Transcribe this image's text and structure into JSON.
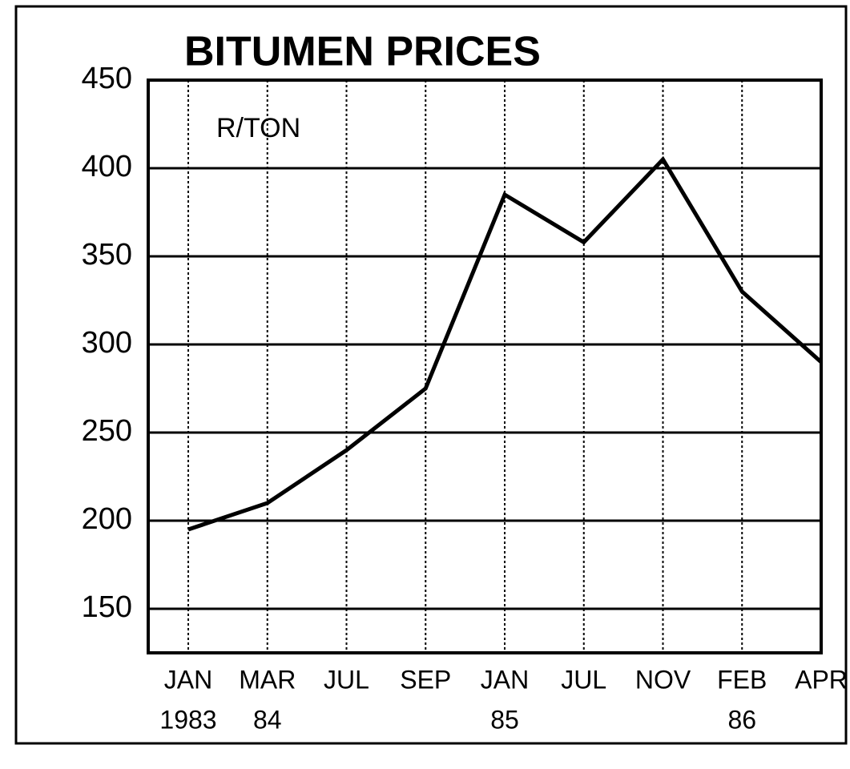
{
  "chart_data": {
    "type": "line",
    "title": "BITUMEN PRICES",
    "unit_label": "R/TON",
    "categories": [
      "JAN",
      "MAR",
      "JUL",
      "SEP",
      "JAN",
      "JUL",
      "NOV",
      "FEB",
      "APR"
    ],
    "year_labels": [
      "1983",
      "84",
      null,
      null,
      "85",
      null,
      null,
      "86",
      null
    ],
    "values": [
      195,
      210,
      240,
      275,
      385,
      358,
      405,
      330,
      290
    ],
    "color": "#000000",
    "ylim": [
      125,
      450
    ],
    "yticks": [
      150,
      200,
      250,
      300,
      350,
      400,
      450
    ],
    "grid": true
  }
}
